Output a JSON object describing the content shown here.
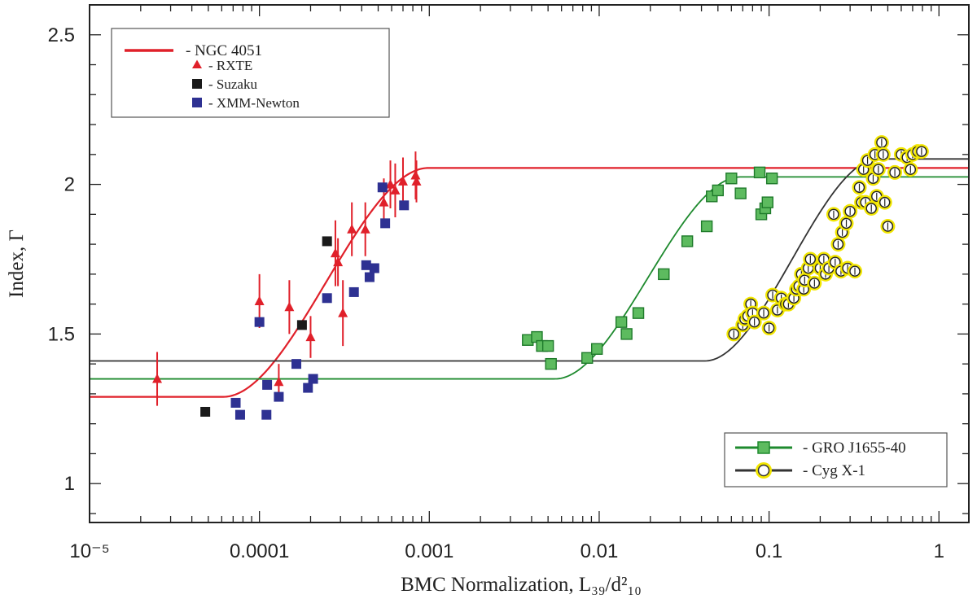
{
  "chart_data": {
    "type": "scatter",
    "title": "",
    "xlabel": "BMC Normalization, L₃₉/d²₁₀",
    "ylabel": "Index, Γ",
    "xscale": "log",
    "xlim": [
      1e-05,
      1.5
    ],
    "ylim": [
      0.87,
      2.6
    ],
    "x_tick_labels": [
      {
        "value": 1e-05,
        "label": "10⁻⁵"
      },
      {
        "value": 0.0001,
        "label": "0.0001"
      },
      {
        "value": 0.001,
        "label": "0.001"
      },
      {
        "value": 0.01,
        "label": "0.01"
      },
      {
        "value": 0.1,
        "label": "0.1"
      },
      {
        "value": 1,
        "label": "1"
      }
    ],
    "y_tick_labels": [
      {
        "value": 1,
        "label": "1"
      },
      {
        "value": 1.5,
        "label": "1.5"
      },
      {
        "value": 2,
        "label": "2"
      },
      {
        "value": 2.5,
        "label": "2.5"
      }
    ],
    "legends": [
      {
        "position": "top-left",
        "entries": [
          {
            "label": "- NGC 4051",
            "marker": "line",
            "color": "#e0202a"
          },
          {
            "label": "- RXTE",
            "marker": "triangle",
            "color": "#e0202a"
          },
          {
            "label": "- Suzaku",
            "marker": "square",
            "color": "#1a1a1a"
          },
          {
            "label": "- XMM-Newton",
            "marker": "square",
            "color": "#2e3192"
          }
        ]
      },
      {
        "position": "bottom-right",
        "entries": [
          {
            "label": "- GRO J1655-40",
            "marker": "line-square",
            "color": "#1e8a2e",
            "fill": "#5dbb5f"
          },
          {
            "label": "- Cyg X-1",
            "marker": "line-circle",
            "color": "#333333",
            "fill": "#ffffff",
            "halo": "#f2e600"
          }
        ]
      }
    ],
    "fit_curves": [
      {
        "name": "NGC 4051",
        "color": "#e0202a",
        "low": 1.29,
        "high": 2.055,
        "x_start": 6.13e-05,
        "x_end": 0.00099
      },
      {
        "name": "GRO J1655-40",
        "color": "#1e8a2e",
        "low": 1.35,
        "high": 2.025,
        "x_start": 0.0055,
        "x_end": 0.068
      },
      {
        "name": "Cyg X-1",
        "color": "#333333",
        "low": 1.41,
        "high": 2.085,
        "x_start": 0.042,
        "x_end": 0.44
      }
    ],
    "series": [
      {
        "name": "RXTE",
        "marker": "triangle",
        "color": "#e0202a",
        "points": [
          {
            "x": 2.5e-05,
            "y": 1.35,
            "err": 0.09
          },
          {
            "x": 0.0001,
            "y": 1.61,
            "err": 0.09
          },
          {
            "x": 0.00013,
            "y": 1.34,
            "err": 0.06
          },
          {
            "x": 0.00015,
            "y": 1.59,
            "err": 0.09
          },
          {
            "x": 0.0002,
            "y": 1.49,
            "err": 0.07
          },
          {
            "x": 0.00028,
            "y": 1.77,
            "err": 0.11
          },
          {
            "x": 0.00029,
            "y": 1.74,
            "err": 0.08
          },
          {
            "x": 0.00031,
            "y": 1.57,
            "err": 0.11
          },
          {
            "x": 0.00035,
            "y": 1.85,
            "err": 0.09
          },
          {
            "x": 0.00042,
            "y": 1.85,
            "err": 0.09
          },
          {
            "x": 0.00054,
            "y": 1.94,
            "err": 0.08
          },
          {
            "x": 0.00059,
            "y": 2.0,
            "err": 0.08
          },
          {
            "x": 0.00063,
            "y": 1.98,
            "err": 0.09
          },
          {
            "x": 0.0007,
            "y": 2.01,
            "err": 0.08
          },
          {
            "x": 0.00083,
            "y": 2.03,
            "err": 0.08
          },
          {
            "x": 0.00084,
            "y": 2.01,
            "err": 0.07
          }
        ]
      },
      {
        "name": "Suzaku",
        "marker": "square",
        "color": "#1a1a1a",
        "points": [
          {
            "x": 4.8e-05,
            "y": 1.24
          },
          {
            "x": 0.000178,
            "y": 1.53
          },
          {
            "x": 0.00025,
            "y": 1.81
          }
        ]
      },
      {
        "name": "XMM-Newton",
        "marker": "square",
        "color": "#2e3192",
        "points": [
          {
            "x": 7.25e-05,
            "y": 1.27
          },
          {
            "x": 7.7e-05,
            "y": 1.23
          },
          {
            "x": 0.0001,
            "y": 1.54
          },
          {
            "x": 0.00011,
            "y": 1.23
          },
          {
            "x": 0.000111,
            "y": 1.33
          },
          {
            "x": 0.00013,
            "y": 1.29
          },
          {
            "x": 0.000165,
            "y": 1.4
          },
          {
            "x": 0.000193,
            "y": 1.32
          },
          {
            "x": 0.000207,
            "y": 1.35
          },
          {
            "x": 0.00025,
            "y": 1.62
          },
          {
            "x": 0.00036,
            "y": 1.64
          },
          {
            "x": 0.000425,
            "y": 1.73
          },
          {
            "x": 0.000445,
            "y": 1.69
          },
          {
            "x": 0.000475,
            "y": 1.72
          },
          {
            "x": 0.00053,
            "y": 1.99
          },
          {
            "x": 0.00055,
            "y": 1.87
          },
          {
            "x": 0.00071,
            "y": 1.93
          }
        ]
      },
      {
        "name": "GRO J1655-40",
        "marker": "square",
        "color": "#5dbb5f",
        "points": [
          {
            "x": 0.0038,
            "y": 1.48
          },
          {
            "x": 0.0043,
            "y": 1.49
          },
          {
            "x": 0.0046,
            "y": 1.46
          },
          {
            "x": 0.005,
            "y": 1.46
          },
          {
            "x": 0.0052,
            "y": 1.4
          },
          {
            "x": 0.0085,
            "y": 1.42
          },
          {
            "x": 0.0097,
            "y": 1.45
          },
          {
            "x": 0.0135,
            "y": 1.54
          },
          {
            "x": 0.0145,
            "y": 1.5
          },
          {
            "x": 0.017,
            "y": 1.57
          },
          {
            "x": 0.024,
            "y": 1.7
          },
          {
            "x": 0.033,
            "y": 1.81
          },
          {
            "x": 0.043,
            "y": 1.86
          },
          {
            "x": 0.046,
            "y": 1.96
          },
          {
            "x": 0.05,
            "y": 1.98
          },
          {
            "x": 0.06,
            "y": 2.02
          },
          {
            "x": 0.068,
            "y": 1.97
          },
          {
            "x": 0.088,
            "y": 2.04
          },
          {
            "x": 0.09,
            "y": 1.9
          },
          {
            "x": 0.095,
            "y": 1.92
          },
          {
            "x": 0.098,
            "y": 1.94
          },
          {
            "x": 0.104,
            "y": 2.02
          }
        ]
      },
      {
        "name": "Cyg X-1",
        "marker": "circle",
        "color": "#ffffff",
        "points": [
          {
            "x": 0.062,
            "y": 1.5
          },
          {
            "x": 0.07,
            "y": 1.53
          },
          {
            "x": 0.072,
            "y": 1.55
          },
          {
            "x": 0.075,
            "y": 1.56
          },
          {
            "x": 0.078,
            "y": 1.6
          },
          {
            "x": 0.08,
            "y": 1.57
          },
          {
            "x": 0.082,
            "y": 1.54
          },
          {
            "x": 0.093,
            "y": 1.57
          },
          {
            "x": 0.1,
            "y": 1.52
          },
          {
            "x": 0.105,
            "y": 1.63
          },
          {
            "x": 0.112,
            "y": 1.58
          },
          {
            "x": 0.118,
            "y": 1.62
          },
          {
            "x": 0.125,
            "y": 1.6
          },
          {
            "x": 0.13,
            "y": 1.6
          },
          {
            "x": 0.14,
            "y": 1.62
          },
          {
            "x": 0.145,
            "y": 1.65
          },
          {
            "x": 0.15,
            "y": 1.66
          },
          {
            "x": 0.155,
            "y": 1.7
          },
          {
            "x": 0.16,
            "y": 1.65
          },
          {
            "x": 0.162,
            "y": 1.68
          },
          {
            "x": 0.17,
            "y": 1.72
          },
          {
            "x": 0.175,
            "y": 1.75
          },
          {
            "x": 0.185,
            "y": 1.67
          },
          {
            "x": 0.2,
            "y": 1.72
          },
          {
            "x": 0.21,
            "y": 1.75
          },
          {
            "x": 0.215,
            "y": 1.7
          },
          {
            "x": 0.225,
            "y": 1.72
          },
          {
            "x": 0.24,
            "y": 1.9
          },
          {
            "x": 0.245,
            "y": 1.74
          },
          {
            "x": 0.255,
            "y": 1.8
          },
          {
            "x": 0.265,
            "y": 1.71
          },
          {
            "x": 0.27,
            "y": 1.84
          },
          {
            "x": 0.285,
            "y": 1.87
          },
          {
            "x": 0.29,
            "y": 1.72
          },
          {
            "x": 0.3,
            "y": 1.91
          },
          {
            "x": 0.32,
            "y": 1.71
          },
          {
            "x": 0.34,
            "y": 1.99
          },
          {
            "x": 0.35,
            "y": 1.94
          },
          {
            "x": 0.36,
            "y": 2.05
          },
          {
            "x": 0.37,
            "y": 1.94
          },
          {
            "x": 0.38,
            "y": 2.08
          },
          {
            "x": 0.4,
            "y": 1.92
          },
          {
            "x": 0.41,
            "y": 2.02
          },
          {
            "x": 0.42,
            "y": 2.1
          },
          {
            "x": 0.43,
            "y": 1.96
          },
          {
            "x": 0.44,
            "y": 2.05
          },
          {
            "x": 0.46,
            "y": 2.14
          },
          {
            "x": 0.47,
            "y": 2.1
          },
          {
            "x": 0.48,
            "y": 1.94
          },
          {
            "x": 0.5,
            "y": 1.86
          },
          {
            "x": 0.55,
            "y": 2.04
          },
          {
            "x": 0.6,
            "y": 2.1
          },
          {
            "x": 0.65,
            "y": 2.09
          },
          {
            "x": 0.68,
            "y": 2.05
          },
          {
            "x": 0.7,
            "y": 2.1
          },
          {
            "x": 0.75,
            "y": 2.11
          },
          {
            "x": 0.79,
            "y": 2.11
          }
        ]
      }
    ]
  }
}
